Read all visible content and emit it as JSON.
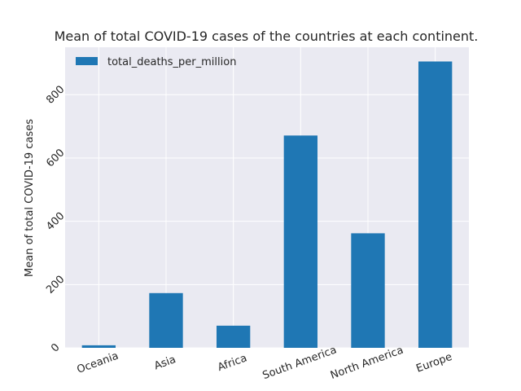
{
  "chart_data": {
    "type": "bar",
    "title": "Mean of total COVID-19 cases of the countries at each continent.",
    "xlabel": "",
    "ylabel": "Mean of total COVID-19 cases",
    "categories": [
      "Oceania",
      "Asia",
      "Africa",
      "South America",
      "North America",
      "Europe"
    ],
    "series": [
      {
        "name": "total_deaths_per_million",
        "values": [
          8,
          173,
          70,
          671,
          362,
          905
        ],
        "color": "#1f77b4"
      }
    ],
    "ylim": [
      0,
      950
    ],
    "yticks": [
      0,
      200,
      400,
      600,
      800
    ],
    "grid": true,
    "legend": "top-left",
    "style": "seaborn-darkgrid"
  }
}
